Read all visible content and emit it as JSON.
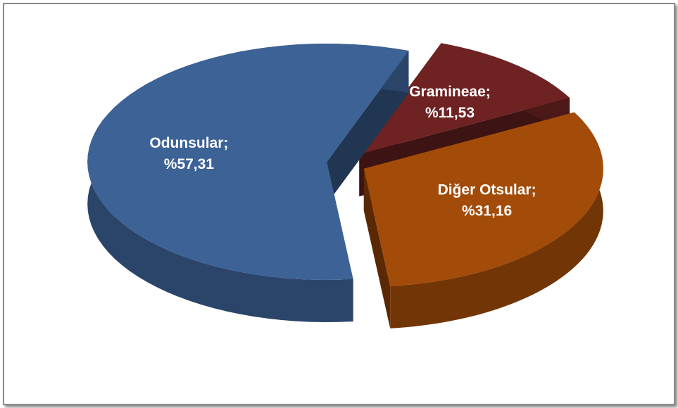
{
  "chart_data": {
    "type": "pie",
    "categories": [
      "Gramineae;",
      "Diğer Otsular;",
      "Odunsular;"
    ],
    "values": [
      11.53,
      31.16,
      57.31
    ],
    "value_labels": [
      "%11,53",
      "%31,16",
      "%57,31"
    ],
    "colors": [
      "#6e2222",
      "#a34b08",
      "#3c6296"
    ]
  }
}
